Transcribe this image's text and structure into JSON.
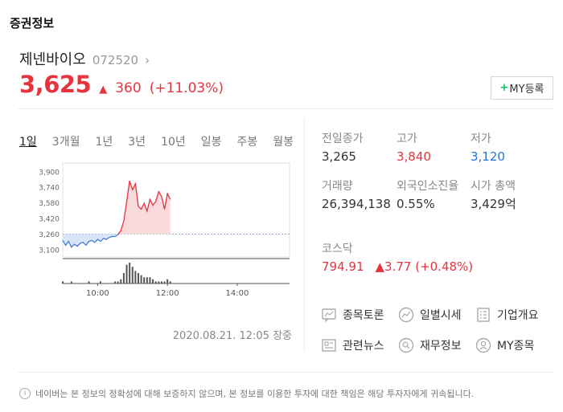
{
  "header": {
    "title": "증권정보"
  },
  "stock": {
    "name": "제넨바이오",
    "code": "072520",
    "price": "3,625",
    "change_amount": "360",
    "change_percent": "(+11.03%)",
    "colors": {
      "up": "#e5343d",
      "down": "#2a74d4"
    }
  },
  "my_button": {
    "label": "MY등록",
    "plus": "+"
  },
  "tabs": [
    "1일",
    "3개월",
    "1년",
    "3년",
    "10년",
    "일봉",
    "주봉",
    "월봉"
  ],
  "active_tab": "1일",
  "timestamp": "2020.08.21. 12:05 장중",
  "info": {
    "prev_close": {
      "label": "전일종가",
      "value": "3,265"
    },
    "high": {
      "label": "고가",
      "value": "3,840"
    },
    "low": {
      "label": "저가",
      "value": "3,120"
    },
    "volume": {
      "label": "거래량",
      "value": "26,394,138"
    },
    "foreign": {
      "label": "외국인소진율",
      "value": "0.55%"
    },
    "market_cap": {
      "label": "시가 총액",
      "value": "3,429억"
    }
  },
  "index": {
    "label": "코스닥",
    "value": "794.91",
    "change": "3.77 (+0.48%)"
  },
  "links": [
    {
      "label": "종목토론",
      "icon": "discussion-icon"
    },
    {
      "label": "일별시세",
      "icon": "trend-icon"
    },
    {
      "label": "기업개요",
      "icon": "document-icon"
    },
    {
      "label": "관련뉴스",
      "icon": "news-icon"
    },
    {
      "label": "재무정보",
      "icon": "search-icon"
    },
    {
      "label": "MY종목",
      "icon": "user-icon"
    }
  ],
  "disclaimer": "네이버는 본 정보의 정확성에 대해 보증하지 않으며, 본 정보를 이용한 투자에 대한 책임은 해당 투자자에게 귀속됩니다.",
  "chart_data": {
    "type": "line",
    "ylim": [
      3030,
      3960
    ],
    "yticks": [
      "3,900",
      "3,740",
      "3,580",
      "3,420",
      "3,260",
      "3,100"
    ],
    "ytick_values": [
      3900,
      3740,
      3580,
      3420,
      3260,
      3100
    ],
    "xticks": [
      "10:00",
      "12:00",
      "14:00"
    ],
    "xtick_values": [
      600,
      720,
      840
    ],
    "xlim": [
      540,
      930
    ],
    "prev_close": 3265,
    "x": [
      540,
      545,
      550,
      555,
      560,
      565,
      570,
      575,
      580,
      585,
      590,
      595,
      600,
      605,
      610,
      615,
      620,
      625,
      630,
      635,
      640,
      645,
      650,
      655,
      660,
      665,
      670,
      675,
      680,
      685,
      690,
      695,
      700,
      705,
      710,
      715,
      720,
      725
    ],
    "y": [
      3200,
      3150,
      3190,
      3130,
      3160,
      3140,
      3170,
      3180,
      3150,
      3190,
      3200,
      3180,
      3210,
      3190,
      3220,
      3210,
      3230,
      3240,
      3240,
      3260,
      3300,
      3400,
      3600,
      3810,
      3720,
      3780,
      3550,
      3520,
      3580,
      3500,
      3620,
      3560,
      3600,
      3700,
      3650,
      3520,
      3680,
      3620
    ],
    "volume": [
      1,
      0,
      0,
      1,
      0,
      0,
      0,
      0,
      0,
      1,
      0,
      0,
      0,
      1,
      0,
      0,
      0,
      0,
      1,
      1,
      2,
      5,
      9,
      10,
      8,
      6,
      5,
      4,
      3,
      3,
      3,
      2,
      1,
      1,
      1,
      1,
      2,
      1
    ]
  }
}
